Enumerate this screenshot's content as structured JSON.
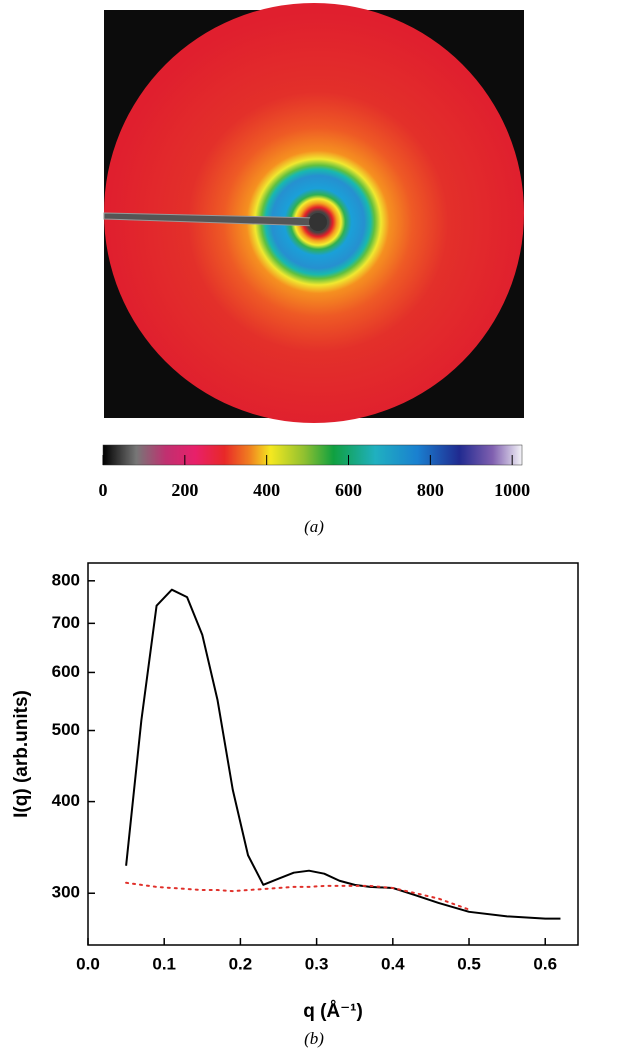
{
  "chart_data": [
    {
      "type": "image",
      "caption": "(a)",
      "clim": [
        0,
        1024
      ],
      "colorbar_ticks": [
        0,
        200,
        400,
        600,
        800,
        1000
      ]
    },
    {
      "type": "line",
      "caption": "(b)",
      "xlabel": "q (Å⁻¹)",
      "ylabel": "I(q) (arb.units)",
      "x": [
        0.05,
        0.07,
        0.09,
        0.11,
        0.13,
        0.15,
        0.17,
        0.19,
        0.21,
        0.23,
        0.25,
        0.27,
        0.29,
        0.31,
        0.33,
        0.35,
        0.37,
        0.4,
        0.43,
        0.46,
        0.5,
        0.55,
        0.6,
        0.62
      ],
      "series": [
        {
          "color": "#000000",
          "style": "solid",
          "values": [
            327,
            516,
            740,
            778,
            760,
            675,
            550,
            415,
            338,
            308,
            314,
            320,
            322,
            319,
            312,
            308,
            306,
            305,
            298,
            291,
            283,
            279,
            277,
            277
          ]
        },
        {
          "color": "#e0302a",
          "style": "dotted",
          "values": [
            310,
            308,
            306,
            305,
            304,
            303,
            303,
            302,
            303,
            304,
            305,
            306,
            306,
            307,
            307,
            307,
            307,
            305,
            300,
            295,
            285,
            null,
            null,
            null
          ]
        }
      ],
      "xlim": [
        0,
        0.643
      ],
      "ylim": [
        255,
        846
      ],
      "log_y": true,
      "xticks": [
        {
          "value": 0,
          "label": "0.0"
        },
        0.1,
        0.2,
        0.3,
        0.4,
        0.5,
        0.6
      ],
      "yticks": [
        300,
        400,
        500,
        600,
        700,
        800
      ]
    }
  ]
}
